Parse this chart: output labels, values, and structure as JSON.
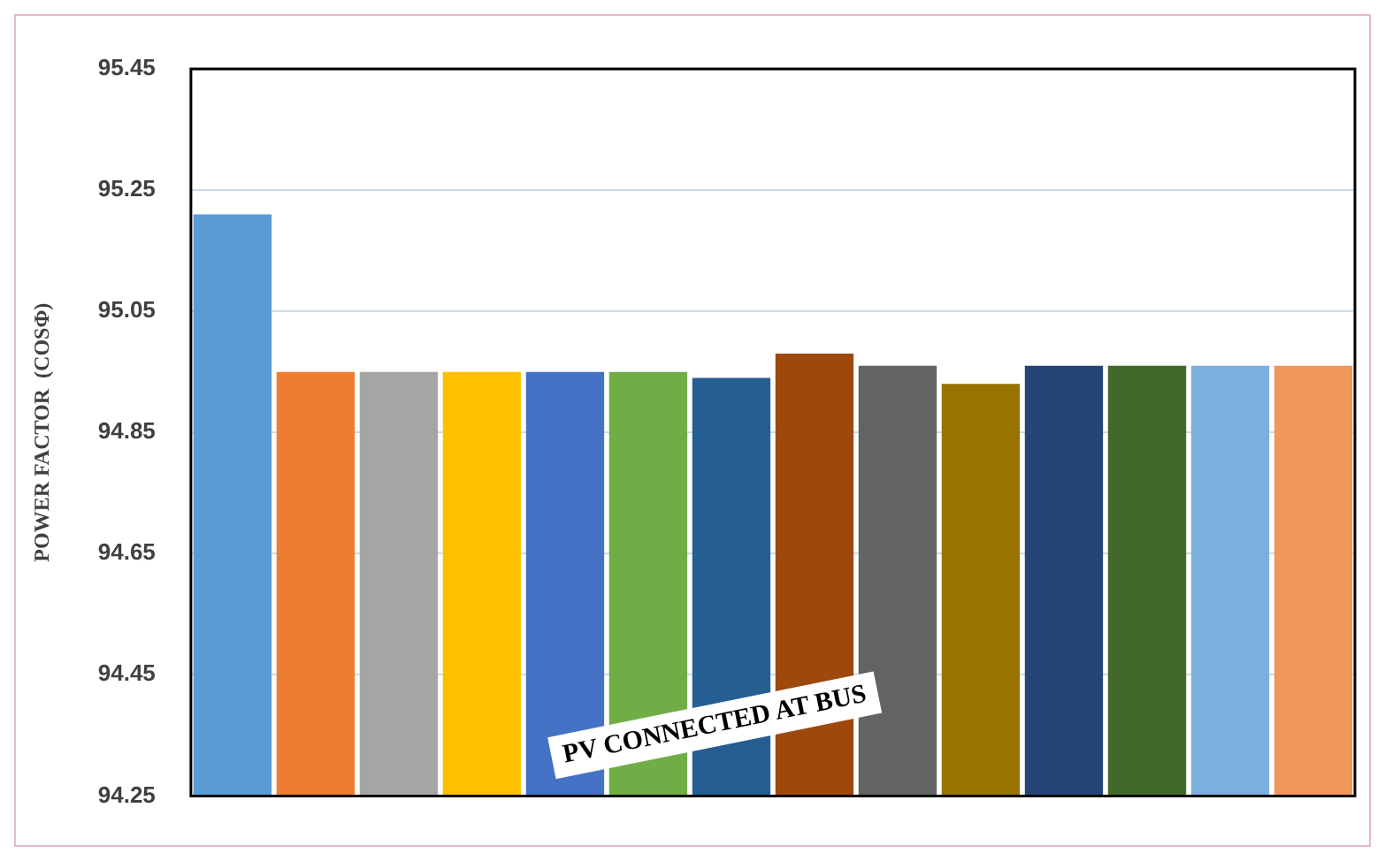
{
  "chart_data": {
    "type": "bar",
    "ylabel": "POWER FACTOR  (COSΦ)",
    "categories": [
      null,
      null,
      null,
      null,
      null,
      null,
      null,
      null,
      null,
      null,
      null,
      null,
      null,
      null
    ],
    "values": [
      95.21,
      94.95,
      94.95,
      94.95,
      94.95,
      94.95,
      94.94,
      94.98,
      94.96,
      94.93,
      94.96,
      94.96,
      94.96,
      94.96
    ],
    "colors": [
      "#5b9bd5",
      "#ed7d31",
      "#a5a5a5",
      "#ffc000",
      "#4472c4",
      "#70ad47",
      "#255e91",
      "#9e480e",
      "#636363",
      "#997300",
      "#264478",
      "#43682b",
      "#7cafdd",
      "#f1975a"
    ],
    "ylim": [
      94.25,
      95.45
    ],
    "yticks": [
      94.25,
      94.45,
      94.65,
      94.85,
      95.05,
      95.25,
      95.45
    ],
    "grid": "y",
    "annotations": [
      "PV CONNECTED AT BUS"
    ]
  }
}
